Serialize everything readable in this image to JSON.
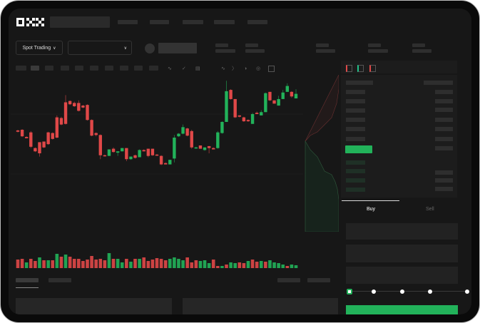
{
  "brand": {
    "logo_text": "OKX"
  },
  "market": {
    "mode_button": "Spot Trading",
    "pair_select": ""
  },
  "trade_form": {
    "tabs": [
      "Buy",
      "Sell"
    ],
    "active_tab": "Buy",
    "slider_percent": 0,
    "slider_stops": [
      0,
      25,
      50,
      75,
      100
    ]
  },
  "colors": {
    "up": "#22b25a",
    "down": "#e04848",
    "background": "#171717",
    "panel": "#1c1c1c"
  },
  "toolbar_icons": [
    "indicator-icon",
    "chart-type-icon",
    "template-icon",
    "line-tool-icon",
    "ruler-icon",
    "camera-icon",
    "settings-icon",
    "fullscreen-icon"
  ],
  "orderbook_icons": [
    "both-sides-icon",
    "bids-only-icon",
    "asks-only-icon"
  ],
  "chart_data": {
    "type": "candlestick",
    "title": "",
    "xlabel": "",
    "ylabel": "",
    "grid": true,
    "ohlc": [
      [
        95,
        93,
        96,
        92
      ],
      [
        96,
        86,
        97,
        85
      ],
      [
        85,
        83,
        86,
        84
      ],
      [
        92,
        70,
        94,
        68
      ],
      [
        68,
        63,
        69,
        62
      ],
      [
        77,
        60,
        77,
        55
      ],
      [
        78,
        69,
        78,
        68
      ],
      [
        92,
        74,
        93,
        73
      ],
      [
        91,
        82,
        92,
        81
      ],
      [
        115,
        84,
        118,
        83
      ],
      [
        114,
        104,
        116,
        103
      ],
      [
        138,
        105,
        149,
        104
      ],
      [
        140,
        135,
        141,
        134
      ],
      [
        137,
        132,
        139,
        131
      ],
      [
        137,
        125,
        141,
        124
      ],
      [
        133,
        130,
        134,
        129
      ],
      [
        134,
        111,
        135,
        110
      ],
      [
        111,
        87,
        112,
        86
      ],
      [
        91,
        88,
        92,
        86
      ],
      [
        88,
        57,
        89,
        51
      ],
      [
        57,
        56,
        58,
        55
      ],
      [
        56,
        66,
        56,
        65
      ],
      [
        67,
        62,
        69,
        61
      ],
      [
        61,
        63,
        56,
        63
      ],
      [
        63,
        68,
        65,
        68
      ],
      [
        68,
        51,
        68,
        48
      ],
      [
        51,
        55,
        50,
        55
      ],
      [
        57,
        53,
        58,
        52
      ],
      [
        54,
        65,
        54,
        66
      ],
      [
        65,
        63,
        66,
        63
      ],
      [
        67,
        56,
        67,
        54
      ],
      [
        67,
        57,
        67,
        56
      ],
      [
        58,
        57,
        59,
        56
      ],
      [
        56,
        43,
        57,
        42
      ],
      [
        45,
        43,
        46,
        43
      ],
      [
        43,
        50,
        43,
        50
      ],
      [
        52,
        84,
        46,
        88
      ],
      [
        86,
        90,
        85,
        91
      ],
      [
        90,
        100,
        89,
        104
      ],
      [
        98,
        87,
        99,
        86
      ],
      [
        94,
        69,
        96,
        67
      ],
      [
        68,
        69,
        67,
        70
      ],
      [
        72,
        67,
        72,
        67
      ],
      [
        65,
        69,
        64,
        69
      ],
      [
        71,
        68,
        71,
        60
      ],
      [
        68,
        66,
        69,
        66
      ],
      [
        68,
        92,
        67,
        94
      ],
      [
        91,
        108,
        90,
        109
      ],
      [
        108,
        155,
        108,
        171
      ],
      [
        157,
        143,
        158,
        142
      ],
      [
        143,
        115,
        143,
        114
      ],
      [
        118,
        116,
        118,
        115
      ],
      [
        115,
        109,
        116,
        108
      ],
      [
        111,
        109,
        112,
        108
      ],
      [
        105,
        120,
        105,
        122
      ],
      [
        122,
        120,
        124,
        120
      ],
      [
        118,
        123,
        118,
        126
      ],
      [
        123,
        152,
        123,
        153
      ],
      [
        154,
        141,
        154,
        140
      ],
      [
        141,
        136,
        141,
        136
      ],
      [
        133,
        143,
        133,
        148
      ],
      [
        143,
        153,
        143,
        157
      ],
      [
        154,
        163,
        154,
        167
      ],
      [
        154,
        147,
        155,
        145
      ],
      [
        144,
        151,
        144,
        158
      ]
    ],
    "volume": [
      12,
      13,
      8,
      13,
      10,
      15,
      11,
      11,
      11,
      20,
      16,
      19,
      16,
      13,
      13,
      10,
      12,
      17,
      12,
      13,
      11,
      21,
      13,
      13,
      8,
      13,
      9,
      13,
      13,
      15,
      10,
      12,
      14,
      13,
      11,
      13,
      15,
      13,
      11,
      15,
      8,
      11,
      10,
      11,
      7,
      12,
      3,
      3,
      5,
      8,
      7,
      8,
      7,
      10,
      12,
      9,
      10,
      9,
      11,
      8,
      7,
      5,
      3,
      5,
      4
    ],
    "volume_up": [
      0,
      0,
      1,
      0,
      0,
      1,
      0,
      1,
      0,
      1,
      0,
      1,
      0,
      0,
      0,
      0,
      0,
      0,
      0,
      0,
      0,
      1,
      0,
      1,
      1,
      0,
      1,
      0,
      1,
      0,
      0,
      0,
      0,
      0,
      0,
      1,
      1,
      1,
      1,
      0,
      0,
      0,
      1,
      1,
      1,
      0,
      0,
      1,
      0,
      1,
      1,
      0,
      0,
      1,
      0,
      0,
      1,
      0,
      1,
      1,
      1,
      1,
      0,
      1,
      1
    ]
  }
}
